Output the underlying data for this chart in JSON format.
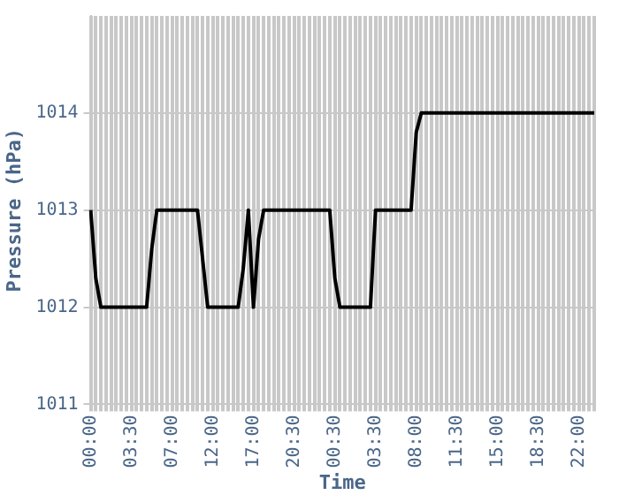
{
  "chart_data": {
    "type": "line",
    "xlabel": "Time",
    "ylabel": "Pressure (hPa)",
    "categories": [
      "00:00",
      null,
      null,
      null,
      null,
      null,
      null,
      null,
      "03:30",
      null,
      null,
      null,
      null,
      null,
      null,
      null,
      "07:00",
      null,
      null,
      null,
      null,
      null,
      null,
      null,
      "12:00",
      null,
      null,
      null,
      null,
      null,
      null,
      null,
      "17:00",
      null,
      null,
      null,
      null,
      null,
      null,
      null,
      "20:30",
      null,
      null,
      null,
      null,
      null,
      null,
      null,
      "00:30",
      null,
      null,
      null,
      null,
      null,
      null,
      null,
      "03:30",
      null,
      null,
      null,
      null,
      null,
      null,
      null,
      "08:00",
      null,
      null,
      null,
      null,
      null,
      null,
      null,
      "11:30",
      null,
      null,
      null,
      null,
      null,
      null,
      null,
      "15:00",
      null,
      null,
      null,
      null,
      null,
      null,
      null,
      "18:30",
      null,
      null,
      null,
      null,
      null,
      null,
      null,
      "22:00",
      null,
      null,
      null
    ],
    "series": [
      {
        "color": "#000000",
        "values": [
          1013,
          1012.3,
          1012,
          1012,
          1012,
          1012,
          1012,
          1012,
          1012,
          1012,
          1012,
          1012,
          1012.6,
          1013,
          1013,
          1013,
          1013,
          1013,
          1013,
          1013,
          1013,
          1013,
          1012.5,
          1012,
          1012,
          1012,
          1012,
          1012,
          1012,
          1012,
          1012.4,
          1013,
          1012,
          1012.7,
          1013,
          1013,
          1013,
          1013,
          1013,
          1013,
          1013,
          1013,
          1013,
          1013,
          1013,
          1013,
          1013,
          1013,
          1012.3,
          1012,
          1012,
          1012,
          1012,
          1012,
          1012,
          1012,
          1013,
          1013,
          1013,
          1013,
          1013,
          1013,
          1013,
          1013,
          1013.8,
          1014,
          1014,
          1014,
          1014,
          1014,
          1014,
          1014,
          1014,
          1014,
          1014,
          1014,
          1014,
          1014,
          1014,
          1014,
          1014,
          1014,
          1014,
          1014,
          1014,
          1014,
          1014,
          1014,
          1014,
          1014,
          1014,
          1014,
          1014,
          1014,
          1014,
          1014,
          1014,
          1014,
          1014,
          1014
        ]
      }
    ],
    "ylim": [
      1011,
      1015
    ],
    "yticks": [
      1011,
      1012,
      1013,
      1014
    ],
    "grid": true,
    "legend": false,
    "marker": "none",
    "line_style": "solid"
  }
}
